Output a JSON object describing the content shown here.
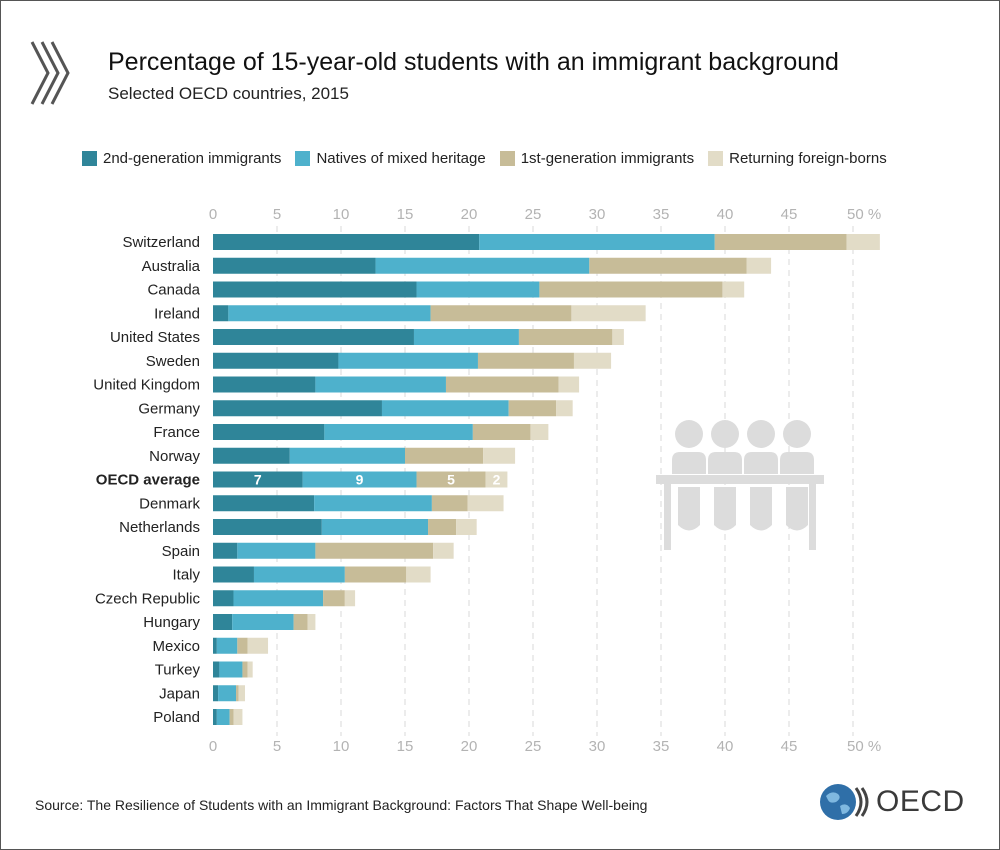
{
  "header": {
    "title": "Percentage of 15-year-old students with an immigrant background",
    "subtitle": "Selected OECD countries, 2015"
  },
  "footer": {
    "source": "Source: The Resilience of Students with an Immigrant Background: Factors That Shape Well-being",
    "logo_text": "OECD"
  },
  "icons": [
    "chevrons-icon",
    "students-at-desk-icon",
    "oecd-globe-icon"
  ],
  "colors": {
    "second_gen": "#2f8599",
    "mixed": "#4eb1cc",
    "first_gen": "#c7bc98",
    "returning": "#e2dcc7",
    "grid": "#d9d9d9",
    "tick": "#b3b3b3",
    "icon": "#dcdcdc"
  },
  "chart_data": {
    "type": "bar",
    "orientation": "horizontal",
    "stacked": true,
    "title": "Percentage of 15-year-old students with an immigrant background",
    "subtitle": "Selected OECD countries, 2015",
    "xlabel": "",
    "ylabel": "",
    "xlim": [
      0,
      52
    ],
    "ticks": [
      0,
      5,
      10,
      15,
      20,
      25,
      30,
      35,
      40,
      45,
      50
    ],
    "tick_labels": [
      "0",
      "5",
      "10",
      "15",
      "20",
      "25",
      "30",
      "35",
      "40",
      "45",
      "50 %"
    ],
    "grid": true,
    "legend_position": "top",
    "categories": [
      "Switzerland",
      "Australia",
      "Canada",
      "Ireland",
      "United States",
      "Sweden",
      "United Kingdom",
      "Germany",
      "France",
      "Norway",
      "OECD average",
      "Denmark",
      "Netherlands",
      "Spain",
      "Italy",
      "Czech Republic",
      "Hungary",
      "Mexico",
      "Turkey",
      "Japan",
      "Poland"
    ],
    "highlight_category": "OECD average",
    "series": [
      {
        "name": "2nd-generation immigrants",
        "key": "second_gen",
        "values": [
          20.8,
          12.7,
          15.9,
          1.2,
          15.7,
          9.8,
          8.0,
          13.2,
          8.7,
          6.0,
          7.0,
          7.9,
          8.5,
          1.9,
          3.2,
          1.6,
          1.5,
          0.3,
          0.5,
          0.4,
          0.3
        ]
      },
      {
        "name": "Natives of mixed heritage",
        "key": "mixed",
        "values": [
          18.4,
          16.7,
          9.6,
          15.8,
          8.2,
          10.9,
          10.2,
          9.9,
          11.6,
          9.0,
          8.9,
          9.2,
          8.3,
          6.1,
          7.1,
          7.0,
          4.8,
          1.6,
          1.8,
          1.4,
          1.0
        ]
      },
      {
        "name": "1st-generation immigrants",
        "key": "first_gen",
        "values": [
          10.3,
          12.3,
          14.3,
          11.0,
          7.3,
          7.5,
          8.8,
          3.7,
          4.5,
          6.1,
          5.4,
          2.8,
          2.2,
          9.2,
          4.8,
          1.7,
          1.1,
          0.8,
          0.4,
          0.2,
          0.3
        ]
      },
      {
        "name": "Returning foreign-borns",
        "key": "returning",
        "values": [
          2.6,
          1.9,
          1.7,
          5.8,
          0.9,
          2.9,
          1.6,
          1.3,
          1.4,
          2.5,
          1.7,
          2.8,
          1.6,
          1.6,
          1.9,
          0.8,
          0.6,
          1.6,
          0.4,
          0.5,
          0.7
        ]
      }
    ],
    "annotations": [
      {
        "category": "OECD average",
        "series": "2nd-generation immigrants",
        "text": "7"
      },
      {
        "category": "OECD average",
        "series": "Natives of mixed heritage",
        "text": "9"
      },
      {
        "category": "OECD average",
        "series": "1st-generation immigrants",
        "text": "5"
      },
      {
        "category": "OECD average",
        "series": "Returning foreign-borns",
        "text": "2"
      }
    ]
  }
}
